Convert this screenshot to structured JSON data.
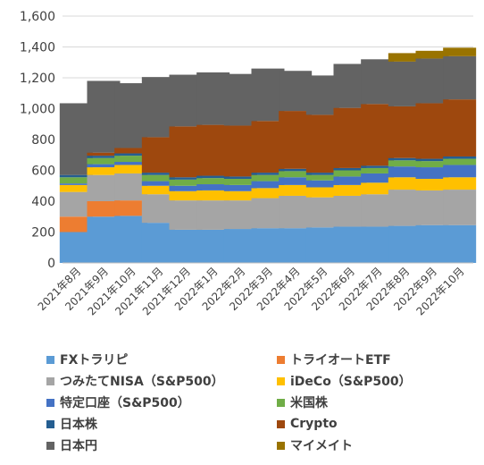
{
  "chart_data": {
    "type": "bar",
    "stacked": true,
    "ylim": [
      0,
      1600
    ],
    "yticks": [
      "0",
      "200",
      "400",
      "600",
      "800",
      "1,000",
      "1,200",
      "1,400",
      "1,600"
    ],
    "grid": true,
    "legend_position": "bottom",
    "categories": [
      "2021年8月",
      "2021年9月",
      "2021年10月",
      "2021年11月",
      "2021年12月",
      "2022年1月",
      "2022年2月",
      "2022年3月",
      "2022年4月",
      "2022年5月",
      "2022年6月",
      "2022年7月",
      "2022年8月",
      "2022年9月",
      "2022年10月"
    ],
    "series": [
      {
        "name": "FXトラリピ",
        "color": "#5B9BD5",
        "values": [
          200,
          300,
          305,
          260,
          215,
          215,
          220,
          225,
          225,
          230,
          235,
          235,
          240,
          245,
          245
        ]
      },
      {
        "name": "トライオートETF",
        "color": "#ED7D31",
        "values": [
          100,
          100,
          100,
          0,
          0,
          0,
          0,
          0,
          0,
          0,
          0,
          0,
          0,
          0,
          0
        ]
      },
      {
        "name": "つみたてNISA（S&P500）",
        "color": "#A5A5A5",
        "values": [
          160,
          170,
          175,
          185,
          190,
          190,
          185,
          195,
          210,
          195,
          200,
          210,
          235,
          225,
          230
        ]
      },
      {
        "name": "iDeCo（S&P500）",
        "color": "#FFC000",
        "values": [
          45,
          50,
          55,
          55,
          60,
          65,
          60,
          65,
          70,
          65,
          70,
          75,
          80,
          75,
          80
        ]
      },
      {
        "name": "特定口座（S&P500）",
        "color": "#4472C4",
        "values": [
          10,
          20,
          20,
          30,
          35,
          40,
          40,
          45,
          50,
          45,
          55,
          60,
          70,
          75,
          80
        ]
      },
      {
        "name": "米国株",
        "color": "#70AD47",
        "values": [
          40,
          40,
          40,
          40,
          40,
          40,
          40,
          40,
          40,
          35,
          40,
          35,
          40,
          40,
          40
        ]
      },
      {
        "name": "日本株",
        "color": "#255E91",
        "values": [
          15,
          15,
          15,
          15,
          15,
          15,
          15,
          15,
          15,
          15,
          15,
          15,
          15,
          15,
          15
        ]
      },
      {
        "name": "Crypto",
        "color": "#9E480E",
        "values": [
          0,
          20,
          35,
          230,
          330,
          330,
          330,
          335,
          375,
          375,
          390,
          400,
          335,
          360,
          370
        ]
      },
      {
        "name": "日本円",
        "color": "#636363",
        "values": [
          465,
          465,
          420,
          390,
          335,
          340,
          335,
          340,
          260,
          255,
          285,
          290,
          290,
          290,
          280
        ]
      },
      {
        "name": "マイメイト",
        "color": "#997300",
        "values": [
          0,
          0,
          0,
          0,
          0,
          0,
          0,
          0,
          0,
          0,
          0,
          0,
          55,
          50,
          55
        ]
      }
    ]
  }
}
